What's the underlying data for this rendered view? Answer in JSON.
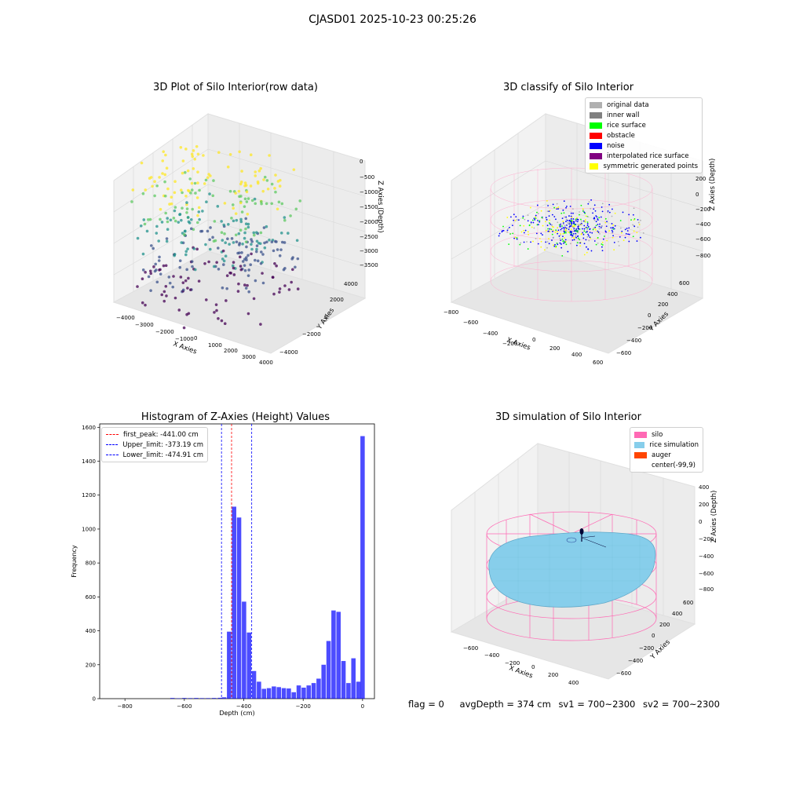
{
  "suptitle": "CJASD01 2025-10-23 00:25:26",
  "panels": {
    "raw": {
      "title": "3D Plot of Silo Interior(row data)",
      "xlabel": "X Axies",
      "ylabel": "Y Axies",
      "zlabel": "Z Axies (Depth)",
      "xticks": [
        "−4000",
        "−3000",
        "−2000",
        "−1000",
        "0",
        "1000",
        "2000",
        "3000",
        "4000"
      ],
      "yticks": [
        "−4000",
        "−2000",
        "0",
        "2000",
        "4000"
      ],
      "zticks": [
        "0",
        "−500",
        "−1000",
        "−1500",
        "−2000",
        "−2500",
        "−3000",
        "−3500"
      ]
    },
    "classify": {
      "title": "3D classify of Silo Interior",
      "xlabel": "X Axies",
      "ylabel": "Y Axies",
      "zlabel": "Z Axies (Depth)",
      "xticks": [
        "−800",
        "−600",
        "−400",
        "−200",
        "0",
        "200",
        "400",
        "600"
      ],
      "yticks": [
        "−600",
        "−400",
        "−200",
        "0",
        "200",
        "400",
        "600"
      ],
      "zticks": [
        "200",
        "0",
        "−200",
        "−400",
        "−600",
        "−800"
      ],
      "legend": [
        {
          "label": "original data",
          "color": "#b0b0b0"
        },
        {
          "label": "inner wall",
          "color": "#808080"
        },
        {
          "label": "rice surface",
          "color": "#00ff00"
        },
        {
          "label": "obstacle",
          "color": "#ff0000"
        },
        {
          "label": "noise",
          "color": "#0000ff"
        },
        {
          "label": "interpolated rice surface",
          "color": "#800080"
        },
        {
          "label": "symmetric generated points",
          "color": "#ffff00"
        }
      ]
    },
    "simulation": {
      "title": "3D simulation of Silo Interior",
      "xlabel": "X Axies",
      "ylabel": "Y Axies",
      "zlabel": "Z Axies (Depth)",
      "xticks": [
        "−600",
        "−400",
        "−200",
        "0",
        "200",
        "400"
      ],
      "yticks": [
        "−600",
        "−400",
        "−200",
        "0",
        "200",
        "400",
        "600"
      ],
      "zticks": [
        "400",
        "200",
        "0",
        "−200",
        "−400",
        "−600",
        "−800"
      ],
      "legend": [
        {
          "label": "silo",
          "color": "#ff69b4"
        },
        {
          "label": "rice simulation",
          "color": "#87ceeb"
        },
        {
          "label": "auger",
          "color": "#ff4500"
        },
        {
          "label": "center(-99,9)",
          "color": ""
        }
      ]
    }
  },
  "chart_data": {
    "type": "bar",
    "title": "Histogram of Z-Axies (Height) Values",
    "xlabel": "Depth (cm)",
    "ylabel": "Frequency",
    "xlim": [
      -885,
      40
    ],
    "ylim": [
      0,
      1620
    ],
    "xticks": [
      -800,
      -600,
      -400,
      -200,
      0
    ],
    "xtick_labels": [
      "−800",
      "−600",
      "−400",
      "−200",
      "0"
    ],
    "yticks": [
      0,
      200,
      400,
      600,
      800,
      1000,
      1200,
      1400,
      1600
    ],
    "bar_color": "#0000ff",
    "bin_width": 10.5,
    "bins": [
      {
        "x": -640,
        "v": 4
      },
      {
        "x": -622,
        "v": 2
      },
      {
        "x": -600,
        "v": 4
      },
      {
        "x": -580,
        "v": 3
      },
      {
        "x": -560,
        "v": 4
      },
      {
        "x": -540,
        "v": 3
      },
      {
        "x": -520,
        "v": 3
      },
      {
        "x": -500,
        "v": 4
      },
      {
        "x": -480,
        "v": 5
      },
      {
        "x": -466,
        "v": 8
      },
      {
        "x": -455,
        "v": 395
      },
      {
        "x": -444,
        "v": 1132
      },
      {
        "x": -434,
        "v": 1068
      },
      {
        "x": -423,
        "v": 572
      },
      {
        "x": -413,
        "v": 390
      },
      {
        "x": -402,
        "v": 163
      },
      {
        "x": -392,
        "v": 100
      },
      {
        "x": -381,
        "v": 58
      },
      {
        "x": -371,
        "v": 62
      },
      {
        "x": -360,
        "v": 72
      },
      {
        "x": -350,
        "v": 68
      },
      {
        "x": -339,
        "v": 62
      },
      {
        "x": -329,
        "v": 60
      },
      {
        "x": -318,
        "v": 38
      },
      {
        "x": -308,
        "v": 78
      },
      {
        "x": -297,
        "v": 65
      },
      {
        "x": -287,
        "v": 78
      },
      {
        "x": -276,
        "v": 92
      },
      {
        "x": -266,
        "v": 118
      },
      {
        "x": -255,
        "v": 200
      },
      {
        "x": -245,
        "v": 340
      },
      {
        "x": -234,
        "v": 520
      },
      {
        "x": -224,
        "v": 512
      },
      {
        "x": -213,
        "v": 222
      },
      {
        "x": -203,
        "v": 92
      },
      {
        "x": -192,
        "v": 238
      },
      {
        "x": -182,
        "v": 100
      },
      {
        "x": -171,
        "v": 1548
      }
    ],
    "bar_positions_note": "",
    "vlines": [
      {
        "label": "first_peak: -441.00 cm",
        "x": -441.0,
        "color": "#ff0000"
      },
      {
        "label": "Upper_limit: -373.19 cm",
        "x": -373.19,
        "color": "#0000ff"
      },
      {
        "label": "Lower_limit: -474.91 cm",
        "x": -474.91,
        "color": "#0000ff"
      }
    ]
  },
  "status": {
    "flag": "flag = 0",
    "avg": "avgDepth = 374 cm",
    "sv1": "sv1 = 700~2300",
    "sv2": "sv2 = 700~2300"
  }
}
